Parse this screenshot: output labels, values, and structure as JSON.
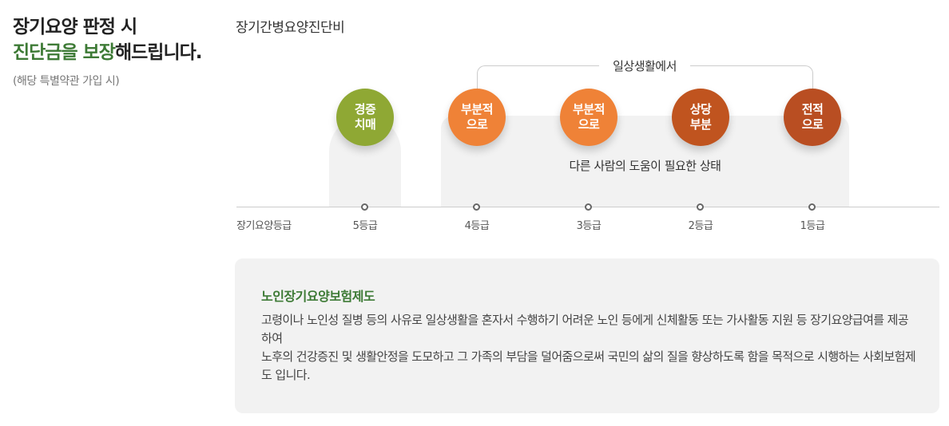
{
  "headline": {
    "line1": "장기요양 판정 시",
    "line2_accent": "진단금을 보장",
    "line2_rest": "해드립니다.",
    "note": "(해당 특별약관 가입 시)"
  },
  "diagram": {
    "title": "장기간병요양진단비",
    "bracket_label": "일상생활에서",
    "group_note": "다른 사람의 도움이 필요한 상태",
    "axis_title": "장기요양등급",
    "grades": [
      {
        "label": "5등급",
        "circle_line1": "경증",
        "circle_line2": "치매",
        "color": "#8fa834"
      },
      {
        "label": "4등급",
        "circle_line1": "부분적",
        "circle_line2": "으로",
        "color": "#ef8237"
      },
      {
        "label": "3등급",
        "circle_line1": "부분적",
        "circle_line2": "으로",
        "color": "#ef8237"
      },
      {
        "label": "2등급",
        "circle_line1": "상당",
        "circle_line2": "부분",
        "color": "#c0541f"
      },
      {
        "label": "1등급",
        "circle_line1": "전적",
        "circle_line2": "으로",
        "color": "#b94e22"
      }
    ]
  },
  "info": {
    "title": "노인장기요양보험제도",
    "para1": "고령이나 노인성 질병 등의 사유로 일상생활을 혼자서 수행하기 어려운 노인 등에게 신체활동 또는 가사활동 지원 등 장기요양급여를 제공하여",
    "para2": "노후의 건강증진 및 생활안정을 도모하고 그 가족의 부담을 덜어줌으로써 국민의 삶의 질을 향상하도록 함을 목적으로 시행하는 사회보험제도 입니다."
  },
  "colors": {
    "accent_green": "#3d7a35",
    "panel_bg": "#f2f2f2"
  }
}
